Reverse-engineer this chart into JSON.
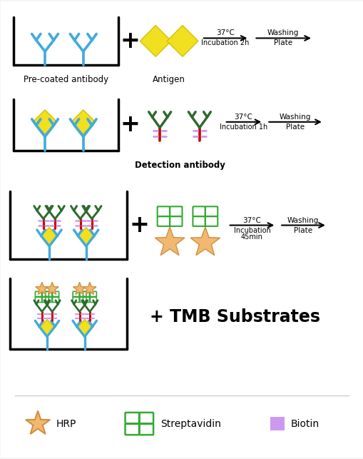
{
  "bg_color": "#f5f5f5",
  "colors": {
    "blue": "#42aadd",
    "yellow": "#f0e020",
    "dark_green": "#2d6a2d",
    "red": "#cc0000",
    "light_purple": "#cc99ee",
    "hrp_color": "#f0b870",
    "strep_color": "#33aa33",
    "black": "#000000",
    "white": "#ffffff"
  },
  "row1_label1": "Pre-coated antibody",
  "row1_label2": "Antigen",
  "row2_label": "Detection antibody",
  "row4_text": "+ TMB Substrates",
  "legend_hrp": "HRP",
  "legend_strep": "Streptavidin",
  "legend_biotin": "Biotin"
}
